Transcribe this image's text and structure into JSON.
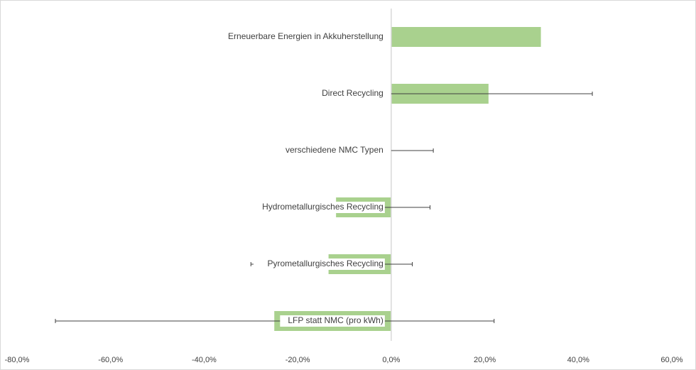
{
  "chart_data": {
    "type": "bar",
    "orientation": "horizontal",
    "categories": [
      "Erneuerbare Energien in Akkuherstellung",
      "Direct Recycling",
      "verschiedene NMC Typen",
      "Hydrometallurgisches Recycling",
      "Pyrometallurgisches Recycling",
      "LFP statt NMC (pro kWh)"
    ],
    "values": [
      32.0,
      20.8,
      0.0,
      -11.8,
      -13.4,
      -25.0
    ],
    "error_low": [
      null,
      0.0,
      0.0,
      -11.8,
      -30.0,
      -71.8
    ],
    "error_high": [
      null,
      43.0,
      9.0,
      8.3,
      4.5,
      22.0
    ],
    "xlim": [
      -80,
      60
    ],
    "xticks": [
      "-80,0%",
      "-60,0%",
      "-40,0%",
      "-20,0%",
      "0,0%",
      "20,0%",
      "40,0%",
      "60,0%"
    ],
    "xtick_values": [
      -80,
      -60,
      -40,
      -20,
      0,
      20,
      40,
      60
    ],
    "title": "",
    "xlabel": "",
    "ylabel": "",
    "grid": false,
    "legend": "none",
    "bar_color": "#a9d18e",
    "axis_color": "#d9d9d9",
    "error_bar_color": "#404040"
  }
}
